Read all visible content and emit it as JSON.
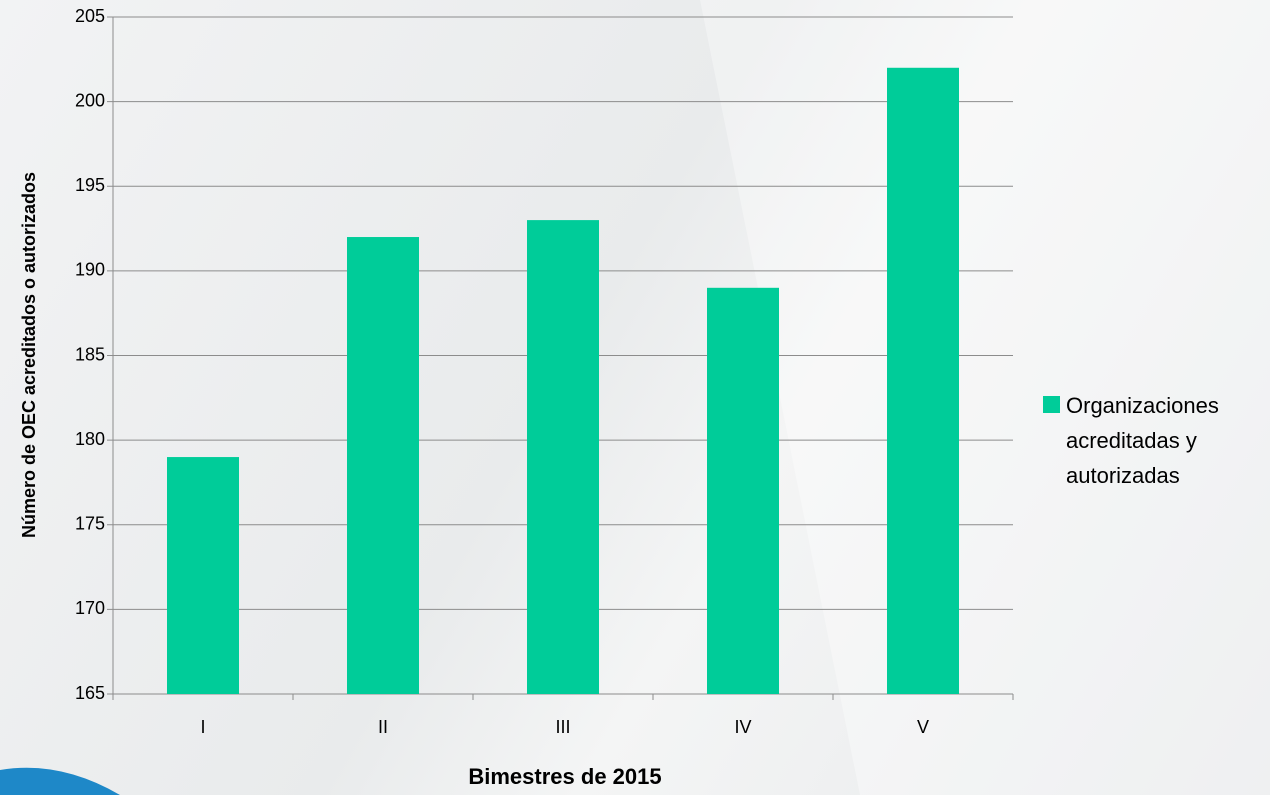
{
  "chart_data": {
    "type": "bar",
    "x_label": "Bimestres de 2015",
    "y_label": "Número de OEC acreditados o autorizados",
    "categories": [
      "I",
      "II",
      "III",
      "IV",
      "V"
    ],
    "series": [
      {
        "name": "Organizaciones acreditadas y autorizadas",
        "color": "#00cc99",
        "values": [
          179,
          192,
          193,
          189,
          202
        ]
      }
    ],
    "ylim": [
      165,
      205
    ],
    "yticks": [
      165,
      170,
      175,
      180,
      185,
      190,
      195,
      200,
      205
    ],
    "grid": true,
    "legend": "right"
  }
}
